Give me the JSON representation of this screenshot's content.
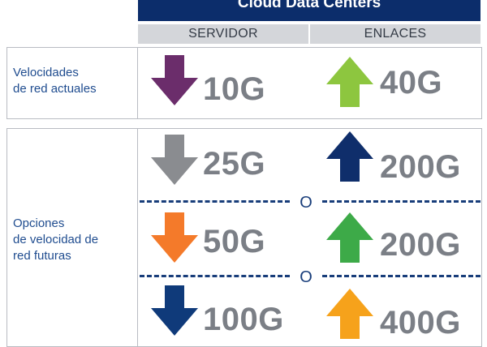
{
  "header": {
    "title": "Cloud Data Centers"
  },
  "columns": {
    "left": "SERVIDOR",
    "right": "ENLACES"
  },
  "current": {
    "label_line1": "Velocidades",
    "label_line2": "de red actuales",
    "server": {
      "speed": "10G",
      "direction": "down",
      "color": "#6b2d6b",
      "icon": "arrow-down-icon"
    },
    "link": {
      "speed": "40G",
      "direction": "up",
      "color": "#8dc63f",
      "icon": "arrow-up-icon"
    }
  },
  "future": {
    "label_line1": "Opciones",
    "label_line2": "de velocidad de",
    "label_line3": "red futuras",
    "separator": "O",
    "options": [
      {
        "server": {
          "speed": "25G",
          "direction": "down",
          "color": "#8a8c90",
          "icon": "arrow-down-icon"
        },
        "link": {
          "speed": "200G",
          "direction": "up",
          "color": "#0f2e6b",
          "icon": "arrow-up-icon"
        }
      },
      {
        "server": {
          "speed": "50G",
          "direction": "down",
          "color": "#f47a2a",
          "icon": "arrow-down-icon"
        },
        "link": {
          "speed": "200G",
          "direction": "up",
          "color": "#3daa48",
          "icon": "arrow-up-icon"
        }
      },
      {
        "server": {
          "speed": "100G",
          "direction": "down",
          "color": "#0f3a7a",
          "icon": "arrow-down-icon"
        },
        "link": {
          "speed": "400G",
          "direction": "up",
          "color": "#f6a21b",
          "icon": "arrow-up-icon"
        }
      }
    ]
  }
}
